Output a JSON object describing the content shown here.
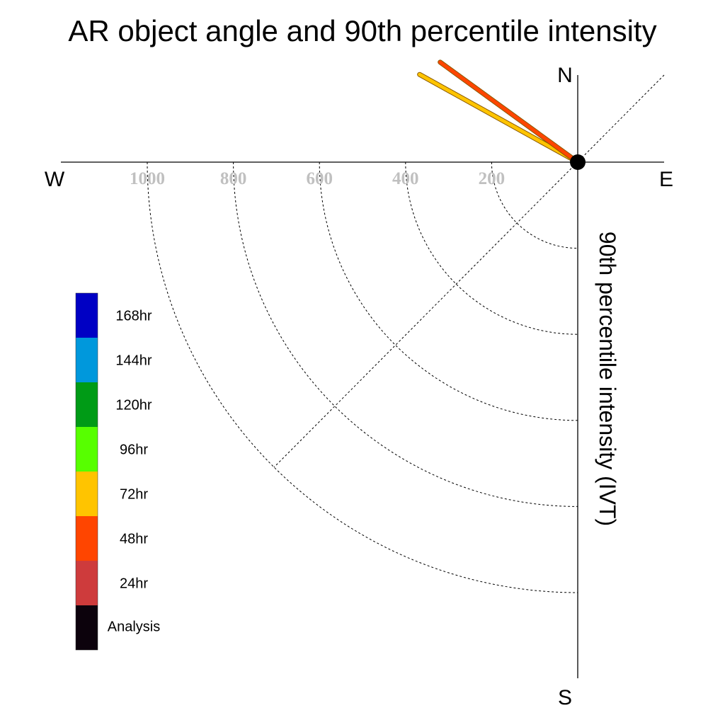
{
  "chart_data": {
    "type": "polar-vector",
    "title": "AR object angle and 90th percentile intensity",
    "ylabel": "90th percentile intensity (IVT)",
    "compass": {
      "north": "N",
      "south": "S",
      "east": "E",
      "west": "W"
    },
    "radial_ticks": [
      200,
      400,
      600,
      800,
      1000
    ],
    "radial_tick_labels": [
      "200",
      "400",
      "600",
      "800",
      "1000"
    ],
    "rmax": 1200,
    "grid": true,
    "legend_position": "left",
    "legend": [
      {
        "label": "168hr",
        "color": "#0000c4"
      },
      {
        "label": "144hr",
        "color": "#0098dc"
      },
      {
        "label": "120hr",
        "color": "#009b16"
      },
      {
        "label": "96hr",
        "color": "#57ff00"
      },
      {
        "label": "72hr",
        "color": "#ffc400"
      },
      {
        "label": "48hr",
        "color": "#ff4500"
      },
      {
        "label": "24hr",
        "color": "#ce3b3c"
      },
      {
        "label": "Analysis",
        "color": "#0c020c"
      }
    ],
    "series": [
      {
        "name": "72hr",
        "color": "#ffc400",
        "angle_deg": 299,
        "intensity": 420
      },
      {
        "name": "48hr",
        "color": "#ff4500",
        "angle_deg": 306,
        "intensity": 395
      }
    ]
  }
}
